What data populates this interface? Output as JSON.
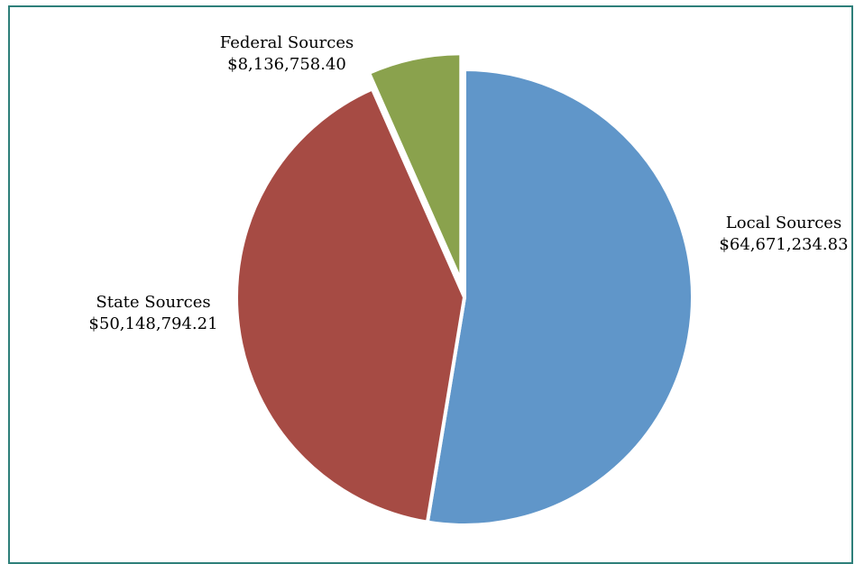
{
  "chart_data": {
    "type": "pie",
    "title": "",
    "start_angle_deg": 0,
    "direction": "clockwise",
    "slices": [
      {
        "label": "Local Sources",
        "value_text": "$64,671,234.83",
        "value": 64671234.83,
        "color": "#6096c9",
        "exploded": false
      },
      {
        "label": "State Sources",
        "value_text": "$50,148,794.21",
        "value": 50148794.21,
        "color": "#a64b44",
        "exploded": false
      },
      {
        "label": "Federal Sources",
        "value_text": "$8,136,758.40",
        "value": 8136758.4,
        "color": "#8aa24d",
        "exploded": true
      }
    ],
    "legend": "none",
    "data_labels": "outside"
  },
  "colors": {
    "frame_border": "#2e7f7a",
    "background": "#ffffff",
    "slice_separator": "#ffffff"
  }
}
